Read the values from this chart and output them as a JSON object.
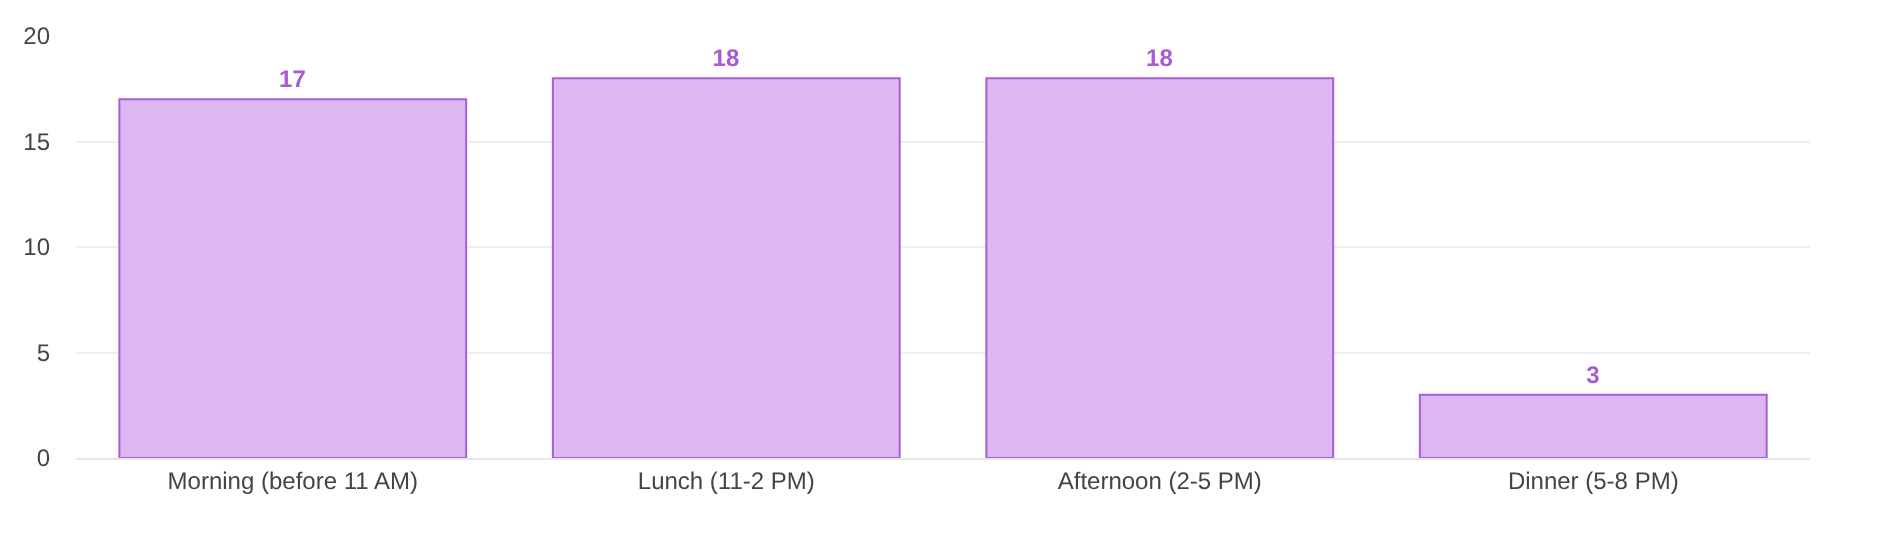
{
  "chart_data": {
    "type": "bar",
    "categories": [
      "Morning (before 11 AM)",
      "Lunch (11-2 PM)",
      "Afternoon (2-5 PM)",
      "Dinner (5-8 PM)"
    ],
    "values": [
      17,
      18,
      18,
      3
    ],
    "color": "#dcb7f1",
    "ylim": [
      0,
      20
    ],
    "yticks": [
      0,
      5,
      10,
      15,
      20
    ],
    "grid": "y",
    "data_labels": true
  }
}
